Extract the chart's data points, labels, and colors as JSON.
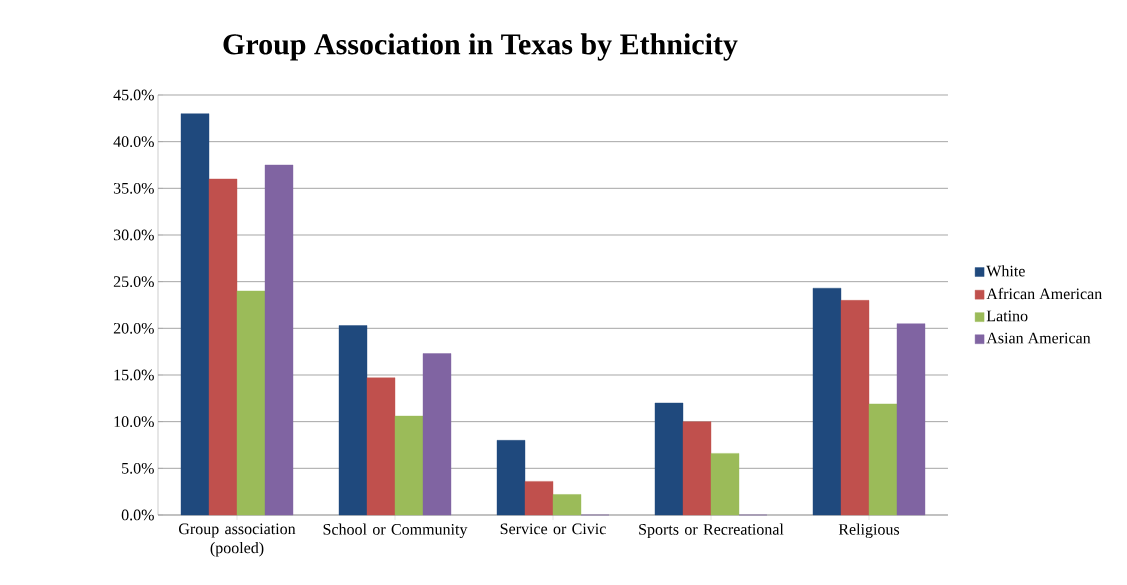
{
  "chart_data": {
    "type": "bar",
    "title": "Group Association in Texas by Ethnicity",
    "categories": [
      "Group association (pooled)",
      "School or Community",
      "Service or Civic",
      "Sports or Recreational",
      "Religious"
    ],
    "series": [
      {
        "name": "White",
        "color": "#1f497d",
        "values": [
          43.0,
          20.3,
          8.0,
          12.0,
          24.3
        ]
      },
      {
        "name": "African American",
        "color": "#c0504d",
        "values": [
          36.0,
          14.7,
          3.6,
          10.0,
          23.0
        ]
      },
      {
        "name": "Latino",
        "color": "#9bbb59",
        "values": [
          24.0,
          10.6,
          2.2,
          6.6,
          11.9
        ]
      },
      {
        "name": "Asian American",
        "color": "#8064a2",
        "values": [
          37.5,
          17.3,
          0,
          0,
          20.5
        ]
      }
    ],
    "ylim": [
      0,
      45
    ],
    "yticks": [
      {
        "value": 0,
        "label": "0.0%"
      },
      {
        "value": 5,
        "label": "5.0%"
      },
      {
        "value": 10,
        "label": "10.0%"
      },
      {
        "value": 15,
        "label": "15.0%"
      },
      {
        "value": 20,
        "label": "20.0%"
      },
      {
        "value": 25,
        "label": "25.0%"
      },
      {
        "value": 30,
        "label": "30.0%"
      },
      {
        "value": 35,
        "label": "35.0%"
      },
      {
        "value": 40,
        "label": "40.0%"
      },
      {
        "value": 45,
        "label": "45.0%"
      }
    ],
    "grid": "y",
    "legend": "right"
  }
}
